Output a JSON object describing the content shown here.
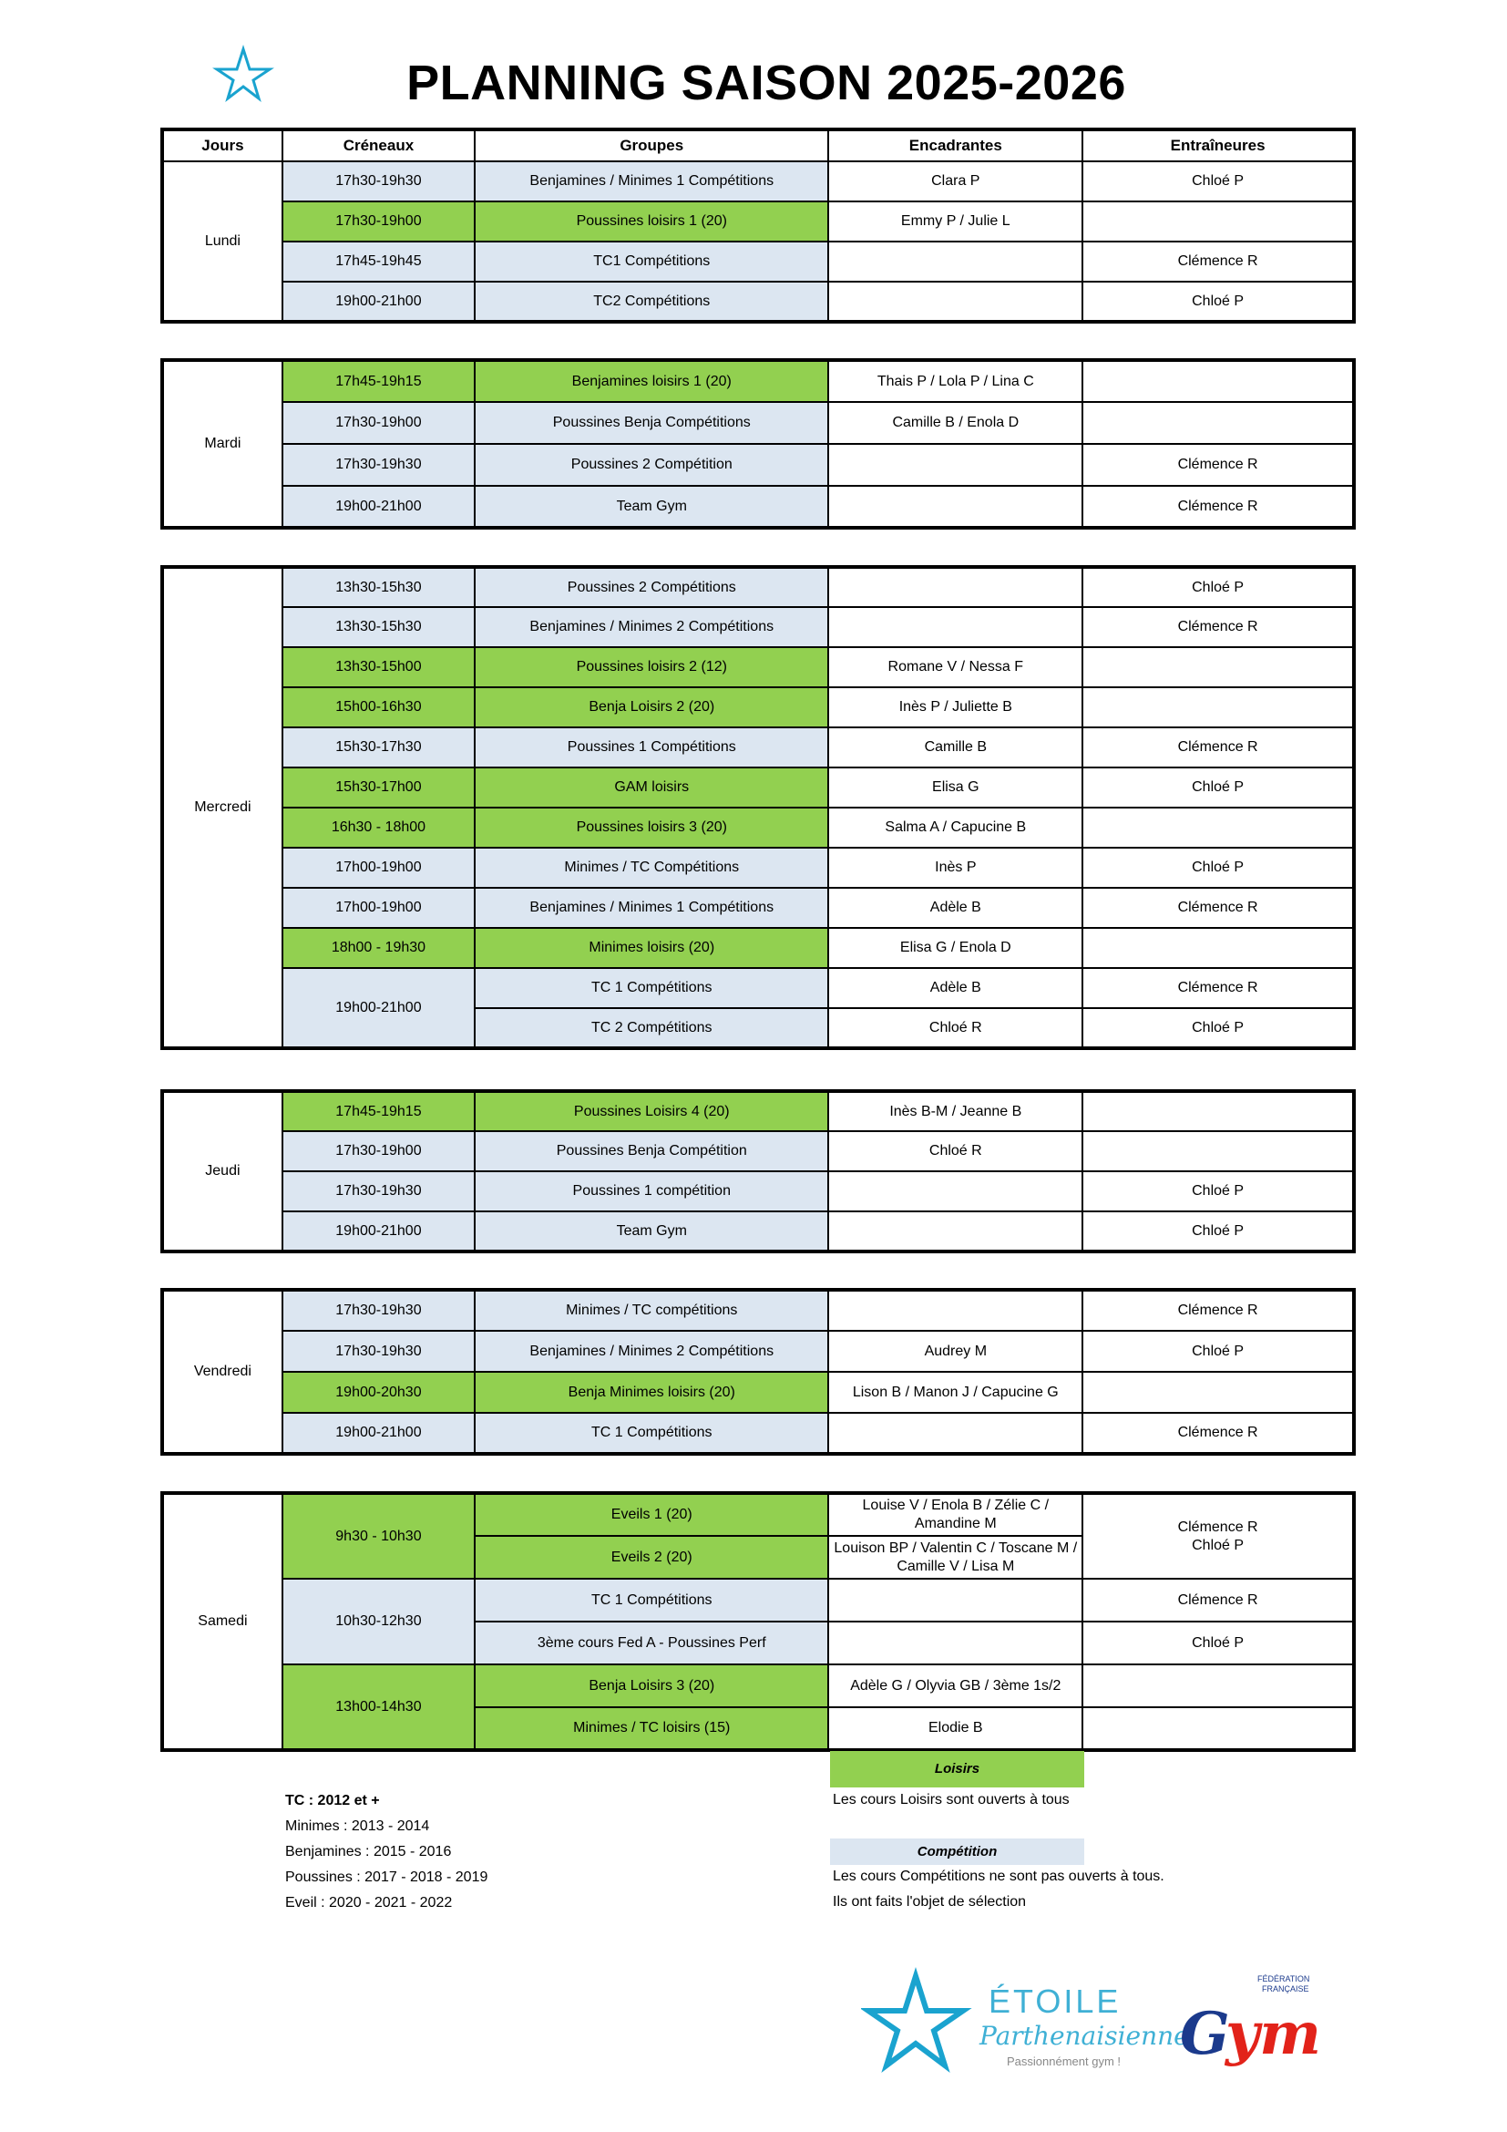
{
  "title": "PLANNING SAISON 2025-2026",
  "logo_text": "ÉTOILE Parthenaisienne",
  "logo_tagline": "Passionnément gym !",
  "ffg_logo_text": "FÉDÉRATION FRANÇAISE Gym",
  "colors": {
    "loisirs": "#92d050",
    "competition": "#dce6f1"
  },
  "headers": [
    "Jours",
    "Créneaux",
    "Groupes",
    "Encadrantes",
    "Entraîneures"
  ],
  "blocks": [
    {
      "day": "Lundi",
      "rows": [
        {
          "time": "17h30-19h30",
          "group": "Benjamines / Minimes 1 Compétitions",
          "type": "competition",
          "enc": "Clara P",
          "entr": "Chloé P"
        },
        {
          "time": "17h30-19h00",
          "group": "Poussines loisirs 1 (20)",
          "type": "loisirs",
          "enc": "Emmy P / Julie L",
          "entr": ""
        },
        {
          "time": "17h45-19h45",
          "group": "TC1 Compétitions",
          "type": "competition",
          "enc": "",
          "entr": "Clémence R"
        },
        {
          "time": "19h00-21h00",
          "group": "TC2 Compétitions",
          "type": "competition",
          "enc": "",
          "entr": "Chloé P"
        }
      ]
    },
    {
      "day": "Mardi",
      "rows": [
        {
          "time": "17h45-19h15",
          "group": "Benjamines loisirs 1 (20)",
          "type": "loisirs",
          "enc": "Thais P / Lola P / Lina C",
          "entr": ""
        },
        {
          "time": "17h30-19h00",
          "group": "Poussines Benja Compétitions",
          "type": "competition",
          "enc": "Camille B / Enola D",
          "entr": ""
        },
        {
          "time": "17h30-19h30",
          "group": "Poussines 2 Compétition",
          "type": "competition",
          "enc": "",
          "entr": "Clémence R"
        },
        {
          "time": "19h00-21h00",
          "group": "Team Gym",
          "type": "competition",
          "enc": "",
          "entr": "Clémence R"
        }
      ]
    },
    {
      "day": "Mercredi",
      "rows": [
        {
          "time": "13h30-15h30",
          "group": "Poussines 2 Compétitions",
          "type": "competition",
          "enc": "",
          "entr": "Chloé P"
        },
        {
          "time": "13h30-15h30",
          "group": "Benjamines / Minimes 2 Compétitions",
          "type": "competition",
          "enc": "",
          "entr": "Clémence R"
        },
        {
          "time": "13h30-15h00",
          "group": "Poussines loisirs 2 (12)",
          "type": "loisirs",
          "enc": "Romane V / Nessa F",
          "entr": ""
        },
        {
          "time": "15h00-16h30",
          "group": "Benja Loisirs 2 (20)",
          "type": "loisirs",
          "enc": "Inès P / Juliette B",
          "entr": ""
        },
        {
          "time": "15h30-17h30",
          "group": "Poussines 1 Compétitions",
          "type": "competition",
          "enc": "Camille B",
          "entr": "Clémence R"
        },
        {
          "time": "15h30-17h00",
          "group": "GAM loisirs",
          "type": "loisirs",
          "enc": "Elisa G",
          "entr": "Chloé P"
        },
        {
          "time": "16h30 - 18h00",
          "group": "Poussines loisirs 3 (20)",
          "type": "loisirs",
          "enc": "Salma A / Capucine B",
          "entr": ""
        },
        {
          "time": "17h00-19h00",
          "group": "Minimes / TC Compétitions",
          "type": "competition",
          "enc": "Inès P",
          "entr": "Chloé P"
        },
        {
          "time": "17h00-19h00",
          "group": "Benjamines / Minimes 1 Compétitions",
          "type": "competition",
          "enc": "Adèle B",
          "entr": "Clémence R"
        },
        {
          "time": "18h00 - 19h30",
          "group": "Minimes loisirs (20)",
          "type": "loisirs",
          "enc": "Elisa G / Enola D",
          "entr": ""
        },
        {
          "time": "19h00-21h00",
          "time_span": 2,
          "group": "TC 1 Compétitions",
          "type": "competition",
          "enc": "Adèle B",
          "entr": "Clémence R"
        },
        {
          "group": "TC 2 Compétitions",
          "type": "competition",
          "enc": "Chloé R",
          "entr": "Chloé P"
        }
      ]
    },
    {
      "day": "Jeudi",
      "rows": [
        {
          "time": "17h45-19h15",
          "group": "Poussines Loisirs 4 (20)",
          "type": "loisirs",
          "enc": "Inès B-M / Jeanne B",
          "entr": ""
        },
        {
          "time": "17h30-19h00",
          "group": "Poussines Benja Compétition",
          "type": "competition",
          "enc": "Chloé R",
          "entr": ""
        },
        {
          "time": "17h30-19h30",
          "group": "Poussines 1 compétition",
          "type": "competition",
          "enc": "",
          "entr": "Chloé P"
        },
        {
          "time": "19h00-21h00",
          "group": "Team Gym",
          "type": "competition",
          "enc": "",
          "entr": "Chloé P"
        }
      ]
    },
    {
      "day": "Vendredi",
      "rows": [
        {
          "time": "17h30-19h30",
          "group": "Minimes / TC compétitions",
          "type": "competition",
          "enc": "",
          "entr": "Clémence R"
        },
        {
          "time": "17h30-19h30",
          "group": "Benjamines / Minimes 2 Compétitions",
          "type": "competition",
          "enc": "Audrey M",
          "entr": "Chloé P"
        },
        {
          "time": "19h00-20h30",
          "group": "Benja Minimes loisirs (20)",
          "type": "loisirs",
          "enc": "Lison B / Manon J / Capucine G",
          "entr": ""
        },
        {
          "time": "19h00-21h00",
          "group": "TC 1 Compétitions",
          "type": "competition",
          "enc": "",
          "entr": "Clémence R"
        }
      ]
    },
    {
      "day": "Samedi",
      "rows": [
        {
          "time": "9h30 - 10h30",
          "time_span": 2,
          "group": "Eveils 1 (20)",
          "type": "loisirs",
          "enc": "Louise V / Enola B / Zélie C / Amandine M",
          "entr": "Clémence R\nChloé P",
          "entr_span": 2
        },
        {
          "group": "Eveils 2 (20)",
          "type": "loisirs",
          "enc": "Louison BP / Valentin C / Toscane M / Camille V /  Lisa M"
        },
        {
          "time": "10h30-12h30",
          "time_span": 2,
          "group": "TC 1 Compétitions",
          "type": "competition",
          "enc": "",
          "entr": "Clémence R"
        },
        {
          "group": "3ème cours Fed A - Poussines Perf",
          "type": "competition",
          "enc": "",
          "entr": "Chloé P"
        },
        {
          "time": "13h00-14h30",
          "time_span": 2,
          "time_type": "loisirs",
          "group": "Benja Loisirs 3 (20)",
          "type": "loisirs",
          "enc": "Adèle G / Olyvia GB / 3ème 1s/2",
          "entr": ""
        },
        {
          "group": "Minimes / TC loisirs (15)",
          "type": "loisirs",
          "enc": "Elodie B",
          "entr": ""
        }
      ]
    }
  ],
  "notes": [
    "TC : 2012 et +",
    "Minimes : 2013 - 2014",
    "Benjamines : 2015 - 2016",
    "Poussines : 2017 - 2018 - 2019",
    "Eveil : 2020 - 2021 - 2022"
  ],
  "legend": {
    "loisirs_label": "Loisirs",
    "loisirs_text": "Les cours Loisirs sont ouverts à tous",
    "competition_label": "Compétition",
    "competition_text_1": "Les cours Compétitions ne sont pas ouverts à tous.",
    "competition_text_2": "Ils ont faits l'objet de sélection"
  }
}
